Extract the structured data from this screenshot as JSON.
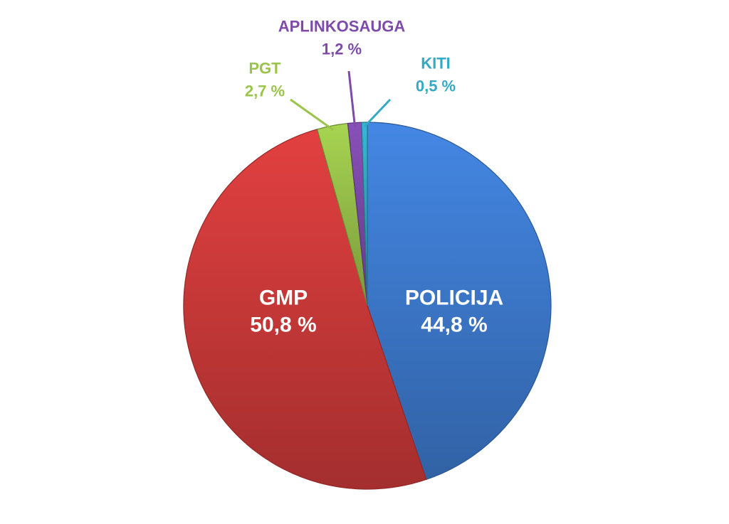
{
  "chart_data": {
    "type": "pie",
    "title": "",
    "start_angle_deg": 0,
    "direction": "clockwise",
    "slices": [
      {
        "label": "POLICIJA",
        "value": 44.8,
        "value_label": "44,8 %",
        "color": "#3F7DD3",
        "label_position": "inside"
      },
      {
        "label": "GMP",
        "value": 50.8,
        "value_label": "50,8 %",
        "color": "#D23B3B",
        "label_position": "inside"
      },
      {
        "label": "PGT",
        "value": 2.7,
        "value_label": "2,7 %",
        "color": "#9BC44B",
        "label_position": "outside"
      },
      {
        "label": "APLINKOSAUGA",
        "value": 1.2,
        "value_label": "1,2 %",
        "color": "#7E4BAA",
        "label_position": "outside"
      },
      {
        "label": "KITI",
        "value": 0.5,
        "value_label": "0,5 %",
        "color": "#33A9C4",
        "label_position": "outside"
      }
    ]
  }
}
